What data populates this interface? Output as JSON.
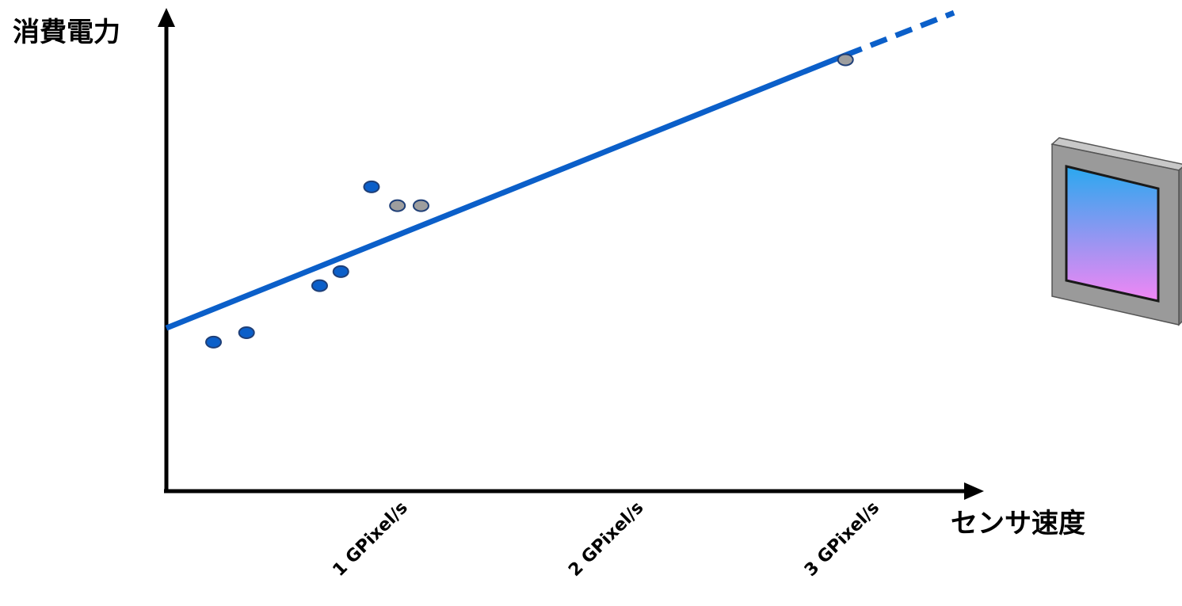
{
  "chart_data": {
    "type": "scatter",
    "xlabel": "センサ速度",
    "ylabel": "消費電力",
    "xlim": [
      0,
      3.4
    ],
    "ylim": [
      0,
      10
    ],
    "x_ticks": [
      {
        "value": 1,
        "label": "1 GPixel/s"
      },
      {
        "value": 2,
        "label": "2 GPixel/s"
      },
      {
        "value": 3,
        "label": "3 GPixel/s"
      }
    ],
    "series": [
      {
        "color": "#0b5fc9",
        "points": [
          {
            "x": 0.2,
            "y": 3.2
          },
          {
            "x": 0.34,
            "y": 3.4
          },
          {
            "x": 0.65,
            "y": 4.4
          },
          {
            "x": 0.74,
            "y": 4.7
          },
          {
            "x": 0.87,
            "y": 6.5
          }
        ]
      },
      {
        "color": "#9e9e9e",
        "points": [
          {
            "x": 0.98,
            "y": 6.1
          },
          {
            "x": 1.08,
            "y": 6.1
          },
          {
            "x": 2.88,
            "y": 9.2
          }
        ]
      }
    ],
    "trend_line": {
      "color": "#0b5fc9",
      "solid": {
        "x": [
          0,
          2.88
        ],
        "y": [
          3.5,
          9.3
        ]
      },
      "dashed": {
        "x": [
          2.88,
          3.34
        ],
        "y": [
          9.3,
          10.2
        ]
      }
    },
    "grid": false,
    "legend": "none"
  },
  "sensor_illustration": {
    "icon": "image-sensor-icon",
    "frame_color": "#9a9a9a",
    "gradient_top": "#2aa8ef",
    "gradient_bottom": "#f286f4"
  }
}
